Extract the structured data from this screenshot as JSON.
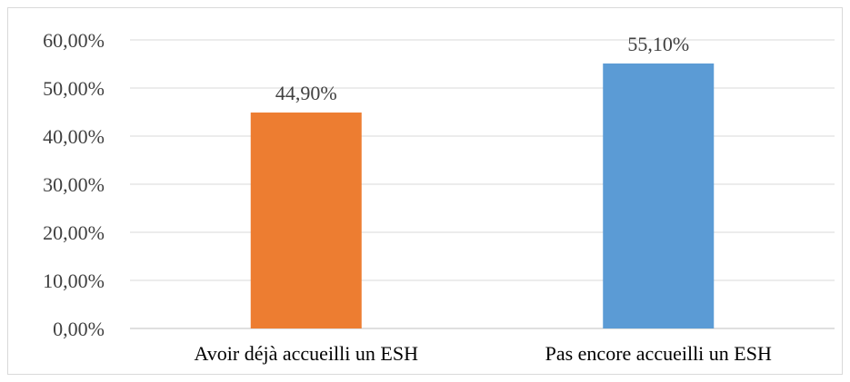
{
  "chart_data": {
    "type": "bar",
    "categories": [
      "Avoir déjà accueilli un ESH",
      "Pas encore accueilli un ESH"
    ],
    "values": [
      44.9,
      55.1
    ],
    "data_labels": [
      "44,90%",
      "55,10%"
    ],
    "bar_colors": [
      "#ed7d31",
      "#5b9bd5"
    ],
    "ylim": [
      0,
      60
    ],
    "yticks": [
      0,
      10,
      20,
      30,
      40,
      50,
      60
    ],
    "ytick_labels": [
      "0,00%",
      "10,00%",
      "20,00%",
      "30,00%",
      "40,00%",
      "50,00%",
      "60,00%"
    ],
    "grid": true,
    "legend": "none"
  }
}
